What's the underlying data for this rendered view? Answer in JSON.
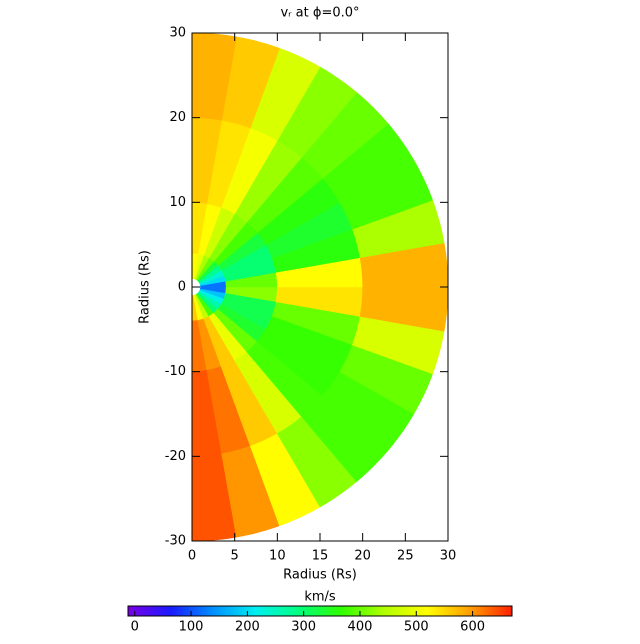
{
  "chart_data": {
    "type": "polar-heatmap",
    "title": "vᵣ at ϕ=0.0°",
    "xlabel": "Radius (Rs)",
    "ylabel": "Radius (Rs)",
    "xlim": [
      0,
      30
    ],
    "xticks": [
      0,
      5,
      10,
      15,
      20,
      25,
      30
    ],
    "ylim": [
      -30,
      30
    ],
    "yticks": [
      -30,
      -20,
      -10,
      0,
      10,
      20,
      30
    ],
    "lat_bins": [
      -90,
      -80,
      -70,
      -60,
      -50,
      -40,
      -30,
      -20,
      -10,
      0,
      10,
      20,
      30,
      40,
      50,
      60,
      70,
      80,
      90
    ],
    "r_bins": [
      1,
      4,
      10,
      20,
      30
    ],
    "values": [
      [
        560,
        620,
        640,
        640
      ],
      [
        520,
        600,
        620,
        600
      ],
      [
        460,
        560,
        560,
        520
      ],
      [
        380,
        500,
        480,
        420
      ],
      [
        300,
        400,
        380,
        380
      ],
      [
        260,
        340,
        370,
        380
      ],
      [
        220,
        320,
        370,
        400
      ],
      [
        180,
        320,
        400,
        480
      ],
      [
        120,
        420,
        540,
        580
      ],
      [
        120,
        400,
        520,
        580
      ],
      [
        200,
        300,
        360,
        440
      ],
      [
        240,
        300,
        340,
        380
      ],
      [
        280,
        330,
        360,
        380
      ],
      [
        330,
        380,
        390,
        400
      ],
      [
        400,
        420,
        430,
        420
      ],
      [
        440,
        470,
        510,
        480
      ],
      [
        500,
        520,
        540,
        560
      ],
      [
        520,
        540,
        560,
        580
      ]
    ],
    "colorbar": {
      "title": "km/s",
      "clim": [
        -12,
        670
      ],
      "ticks": [
        0,
        100,
        200,
        300,
        400,
        500,
        600
      ]
    },
    "colormap": [
      "#7a00e6",
      "#1a1aff",
      "#0090ff",
      "#00f0f0",
      "#00ff80",
      "#30ff00",
      "#b0ff00",
      "#ffff00",
      "#ffa000",
      "#ff2000"
    ]
  }
}
